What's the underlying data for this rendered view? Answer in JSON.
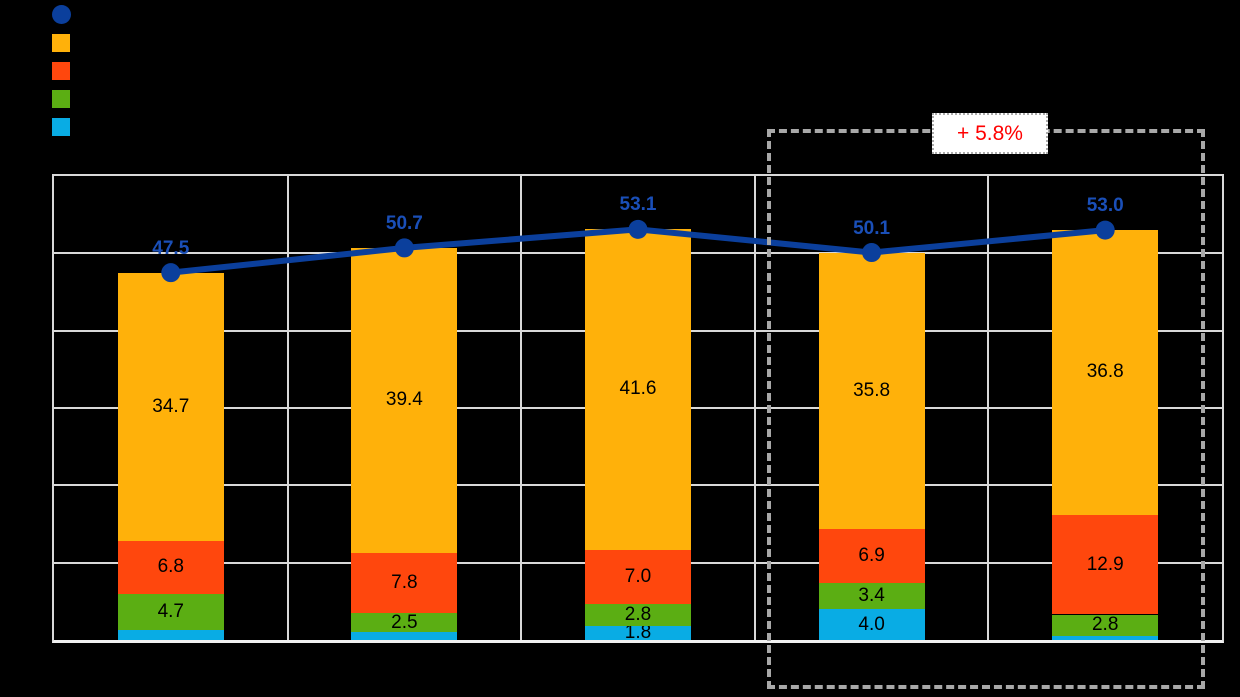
{
  "page": {
    "background": "#000000"
  },
  "legend": {
    "items": [
      {
        "name": "total-line-marker",
        "shape": "circle",
        "color": "#0b3f9c"
      },
      {
        "name": "series-yellow-marker",
        "shape": "square",
        "color": "#ffb10a"
      },
      {
        "name": "series-red-marker",
        "shape": "square",
        "color": "#ff470d"
      },
      {
        "name": "series-green-marker",
        "shape": "square",
        "color": "#5bae13"
      },
      {
        "name": "series-cyan-marker",
        "shape": "square",
        "color": "#09ace4"
      }
    ]
  },
  "annotation": {
    "label": "+ 5.8%",
    "text_color": "#ff0000",
    "box_background": "#ffffff",
    "box_border_color": "#ababab",
    "highlight_border_color": "#a8a8a8"
  },
  "chart_data": {
    "type": "bar",
    "subtype": "stacked-bars-with-total-line",
    "n_categories": 5,
    "ylim": [
      0,
      60
    ],
    "grid_step": 10,
    "grid": true,
    "legend_position": "top-left",
    "grid_color": "#d9d9d9",
    "series": [
      {
        "name": "series-cyan",
        "color": "#09ace4",
        "values": [
          1.3,
          1.0,
          1.8,
          4.0,
          0.5
        ],
        "labels": [
          null,
          null,
          "1.8",
          "4.0",
          null
        ]
      },
      {
        "name": "series-green",
        "color": "#5bae13",
        "values": [
          4.7,
          2.5,
          2.8,
          3.4,
          2.8
        ],
        "labels": [
          "4.7",
          "2.5",
          "2.8",
          "3.4",
          "2.8"
        ]
      },
      {
        "name": "series-red",
        "color": "#ff470d",
        "values": [
          6.8,
          7.8,
          7.0,
          6.9,
          12.9
        ],
        "labels": [
          "6.8",
          "7.8",
          "7.0",
          "6.9",
          "12.9"
        ]
      },
      {
        "name": "series-yellow",
        "color": "#ffb10a",
        "values": [
          34.7,
          39.4,
          41.6,
          35.8,
          36.8
        ],
        "labels": [
          "34.7",
          "39.4",
          "41.6",
          "35.8",
          "36.8"
        ]
      }
    ],
    "line": {
      "name": "total-line",
      "color": "#0b3f9c",
      "label_color": "#1a4fb8",
      "values": [
        47.5,
        50.7,
        53.1,
        50.1,
        53.0
      ],
      "labels": [
        "47.5",
        "50.7",
        "53.1",
        "50.1",
        "53.0"
      ]
    },
    "highlight": {
      "categories": [
        3,
        4
      ],
      "label": "+ 5.8%"
    }
  }
}
